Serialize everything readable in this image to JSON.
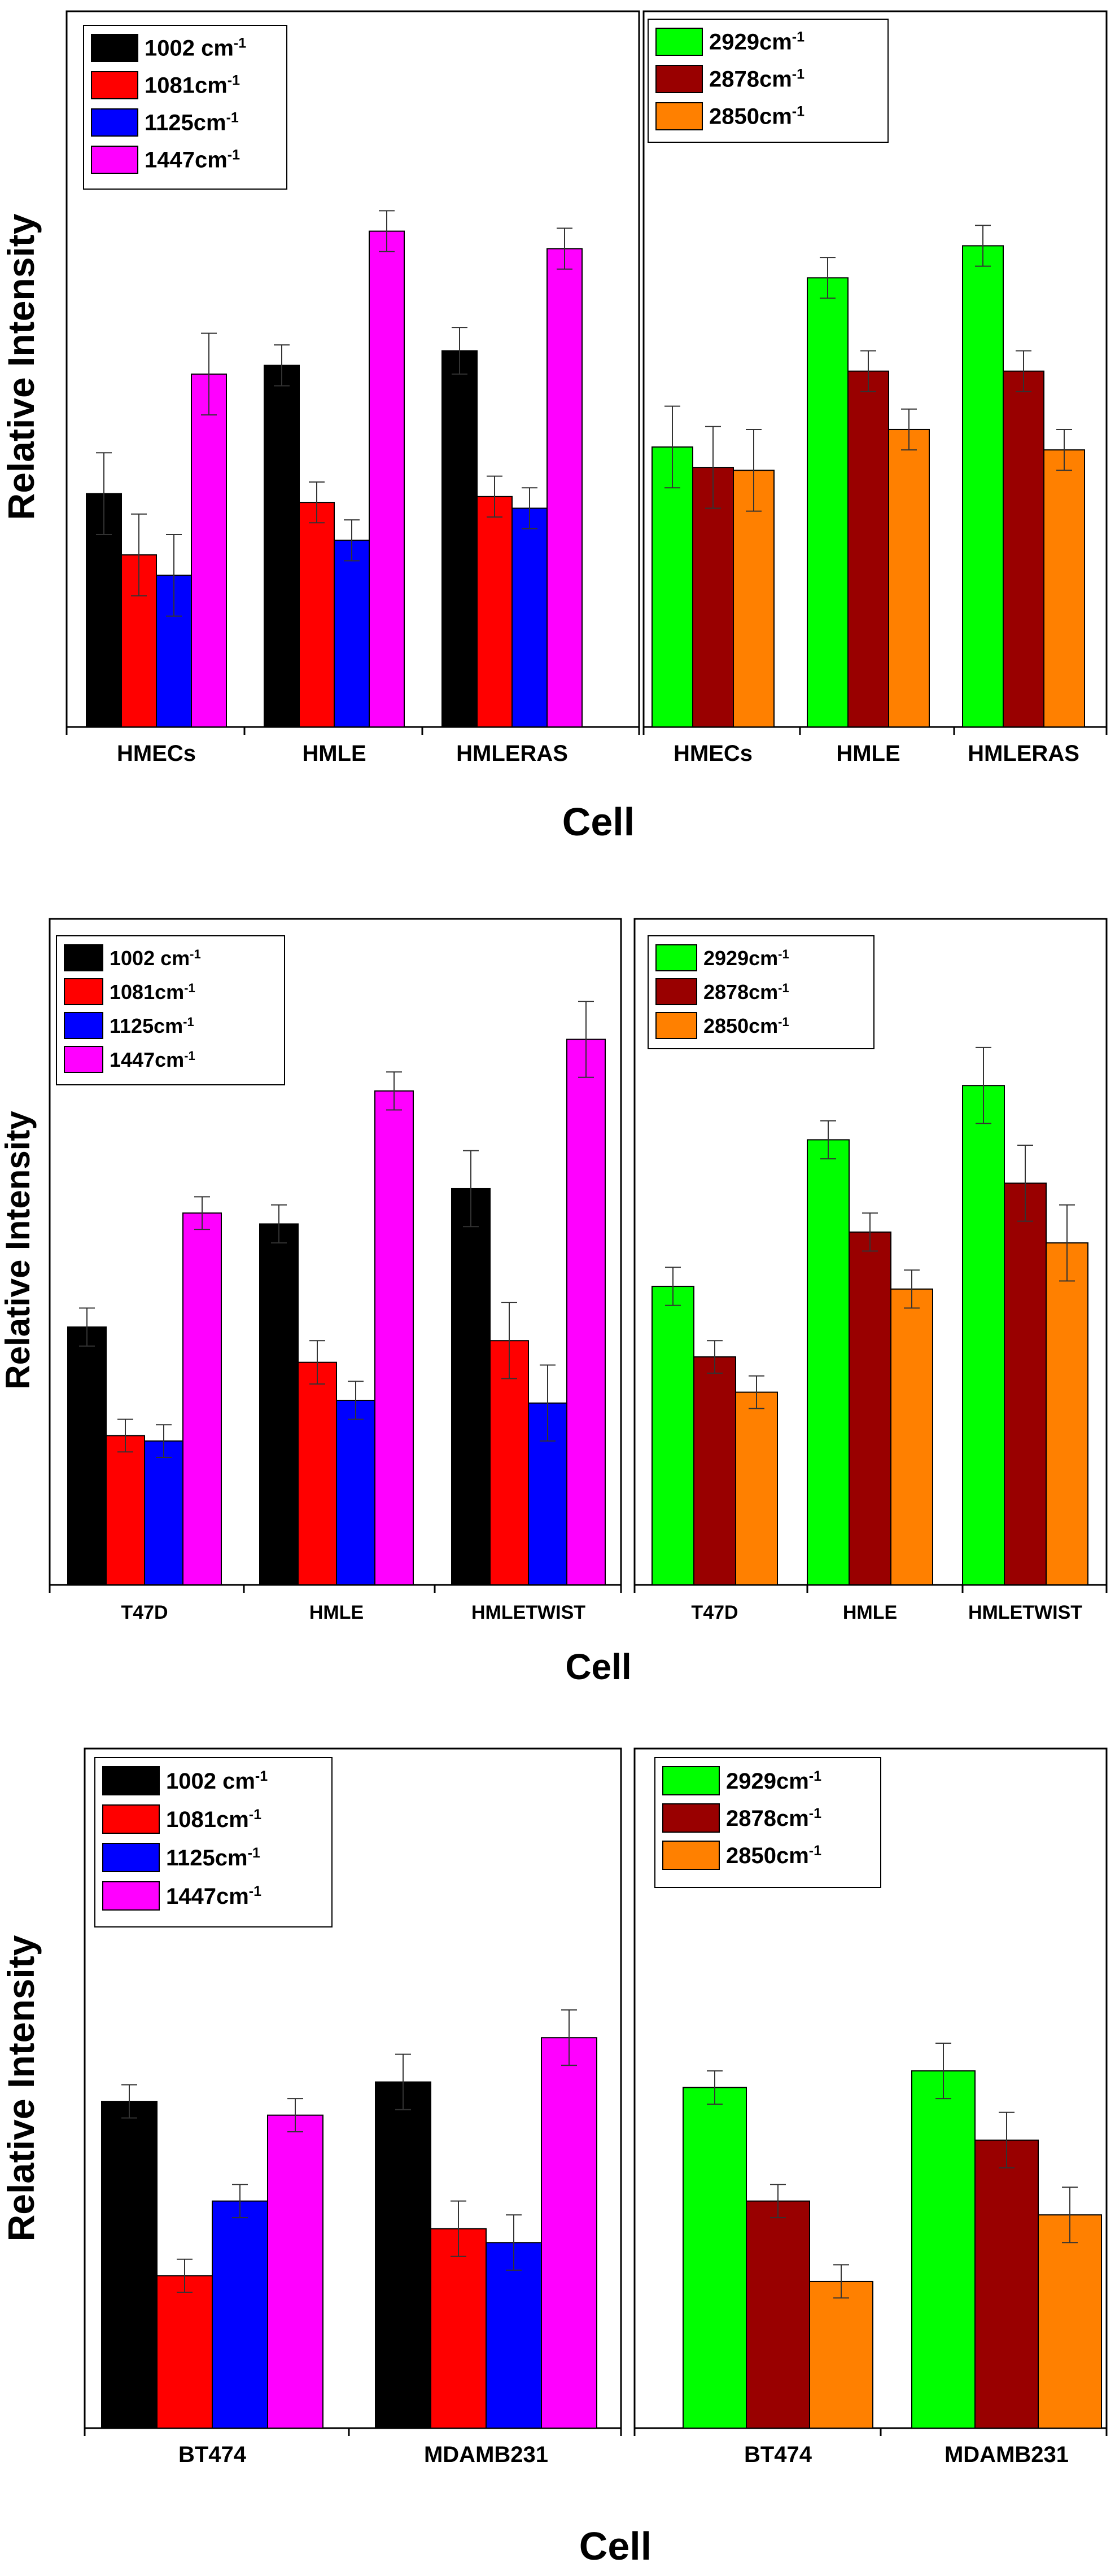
{
  "colors": {
    "1002": "#000000",
    "1081": "#ff0000",
    "1125": "#0000ff",
    "1447": "#ff00ff",
    "2929": "#00ff00",
    "2878": "#990000",
    "2850": "#ff8000"
  },
  "chart_data": [
    {
      "type": "bar",
      "row": 1,
      "side": "left",
      "ylabel": "Relative Intensity",
      "xlabel": "Cell",
      "ylim": [
        0,
        100
      ],
      "categories": [
        "HMECs",
        "HMLE",
        "HMLERAS"
      ],
      "series": [
        {
          "name": "1002 cm",
          "sup": "-1",
          "color": "1002",
          "values": [
            40,
            62,
            64.5
          ],
          "errors": [
            7,
            3.5,
            4
          ]
        },
        {
          "name": "1081cm",
          "sup": "-1",
          "color": "1081",
          "values": [
            29.5,
            38.5,
            39.5
          ],
          "errors": [
            7,
            3.5,
            3.5
          ]
        },
        {
          "name": "1125cm",
          "sup": "-1",
          "color": "1125",
          "values": [
            26,
            32,
            37.5
          ],
          "errors": [
            7,
            3.5,
            3.5
          ]
        },
        {
          "name": "1447cm",
          "sup": "-1",
          "color": "1447",
          "values": [
            60.5,
            85,
            82
          ],
          "errors": [
            7,
            3.5,
            3.5
          ]
        }
      ]
    },
    {
      "type": "bar",
      "row": 1,
      "side": "right",
      "ylabel": "",
      "xlabel": "",
      "ylim": [
        0,
        100
      ],
      "categories": [
        "HMECs",
        "HMLE",
        "HMLERAS"
      ],
      "series": [
        {
          "name": "2929cm",
          "sup": "-1",
          "color": "2929",
          "values": [
            48,
            77,
            82.5
          ],
          "errors": [
            7,
            3.5,
            3.5
          ]
        },
        {
          "name": "2878cm",
          "sup": "-1",
          "color": "2878",
          "values": [
            44.5,
            61,
            61
          ],
          "errors": [
            7,
            3.5,
            3.5
          ]
        },
        {
          "name": "2850cm",
          "sup": "-1",
          "color": "2850",
          "values": [
            44,
            51,
            47.5
          ],
          "errors": [
            7,
            3.5,
            3.5
          ]
        }
      ]
    },
    {
      "type": "bar",
      "row": 2,
      "side": "left",
      "ylabel": "Relative Intensity",
      "xlabel": "Cell",
      "ylim": [
        0,
        100
      ],
      "categories": [
        "T47D",
        "HMLE",
        "HMLETWIST"
      ],
      "series": [
        {
          "name": "1002 cm",
          "sup": "-1",
          "color": "1002",
          "values": [
            47.5,
            66.5,
            73
          ],
          "errors": [
            3.5,
            3.5,
            7
          ]
        },
        {
          "name": "1081cm",
          "sup": "-1",
          "color": "1081",
          "values": [
            27.5,
            41,
            45
          ],
          "errors": [
            3,
            4,
            7
          ]
        },
        {
          "name": "1125cm",
          "sup": "-1",
          "color": "1125",
          "values": [
            26.5,
            34,
            33.5
          ],
          "errors": [
            3,
            3.5,
            7
          ]
        },
        {
          "name": "1447cm",
          "sup": "-1",
          "color": "1447",
          "values": [
            68.5,
            91,
            100.5
          ],
          "errors": [
            3,
            3.5,
            7
          ]
        }
      ]
    },
    {
      "type": "bar",
      "row": 2,
      "side": "right",
      "ylabel": "",
      "xlabel": "",
      "ylim": [
        0,
        100
      ],
      "categories": [
        "T47D",
        "HMLE",
        "HMLETWIST"
      ],
      "series": [
        {
          "name": "2929cm",
          "sup": "-1",
          "color": "2929",
          "values": [
            55,
            82,
            92
          ],
          "errors": [
            3.5,
            3.5,
            7
          ]
        },
        {
          "name": "2878cm",
          "sup": "-1",
          "color": "2878",
          "values": [
            42,
            65,
            74
          ],
          "errors": [
            3,
            3.5,
            7
          ]
        },
        {
          "name": "2850cm",
          "sup": "-1",
          "color": "2850",
          "values": [
            35.5,
            54.5,
            63
          ],
          "errors": [
            3,
            3.5,
            7
          ]
        }
      ]
    },
    {
      "type": "bar",
      "row": 3,
      "side": "left",
      "ylabel": "Relative Intensity",
      "xlabel": "Cell",
      "ylim": [
        0,
        100
      ],
      "categories": [
        "BT474",
        "MDAMB231"
      ],
      "series": [
        {
          "name": "1002 cm",
          "sup": "-1",
          "color": "1002",
          "values": [
            59,
            62.5
          ],
          "errors": [
            3,
            5
          ]
        },
        {
          "name": "1081cm",
          "sup": "-1",
          "color": "1081",
          "values": [
            27.5,
            36
          ],
          "errors": [
            3,
            5
          ]
        },
        {
          "name": "1125cm",
          "sup": "-1",
          "color": "1125",
          "values": [
            41,
            33.5
          ],
          "errors": [
            3,
            5
          ]
        },
        {
          "name": "1447cm",
          "sup": "-1",
          "color": "1447",
          "values": [
            56.5,
            70.5
          ],
          "errors": [
            3,
            5
          ]
        }
      ]
    },
    {
      "type": "bar",
      "row": 3,
      "side": "right",
      "ylabel": "",
      "xlabel": "",
      "ylim": [
        0,
        100
      ],
      "categories": [
        "BT474",
        "MDAMB231"
      ],
      "series": [
        {
          "name": "2929cm",
          "sup": "-1",
          "color": "2929",
          "values": [
            61.5,
            64.5
          ],
          "errors": [
            3,
            5
          ]
        },
        {
          "name": "2878cm",
          "sup": "-1",
          "color": "2878",
          "values": [
            41,
            52
          ],
          "errors": [
            3,
            5
          ]
        },
        {
          "name": "2850cm",
          "sup": "-1",
          "color": "2850",
          "values": [
            26.5,
            38.5
          ],
          "errors": [
            3,
            5
          ]
        }
      ]
    }
  ]
}
